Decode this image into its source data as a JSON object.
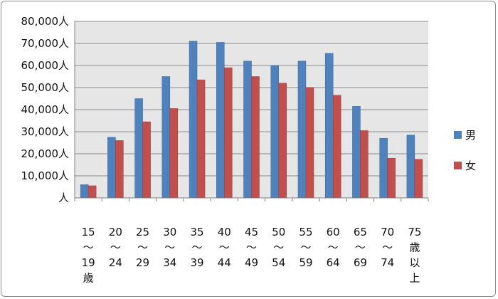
{
  "chart_data": {
    "type": "bar",
    "categories": [
      [
        "15",
        "～",
        "19",
        "歳"
      ],
      [
        "20",
        "～",
        "24"
      ],
      [
        "25",
        "～",
        "29"
      ],
      [
        "30",
        "～",
        "34"
      ],
      [
        "35",
        "～",
        "39"
      ],
      [
        "40",
        "～",
        "44"
      ],
      [
        "45",
        "～",
        "49"
      ],
      [
        "50",
        "～",
        "54"
      ],
      [
        "55",
        "～",
        "59"
      ],
      [
        "60",
        "～",
        "64"
      ],
      [
        "65",
        "～",
        "69"
      ],
      [
        "70",
        "～",
        "74"
      ],
      [
        "75",
        "歳",
        "以",
        "上"
      ]
    ],
    "series": [
      {
        "name": "男",
        "color": "#4f81bd",
        "values": [
          6000,
          27500,
          45000,
          55000,
          71000,
          70500,
          62000,
          60000,
          62000,
          65500,
          41500,
          27000,
          28500
        ]
      },
      {
        "name": "女",
        "color": "#c0504d",
        "values": [
          5500,
          26000,
          34500,
          40500,
          53500,
          59000,
          55000,
          52000,
          50000,
          46500,
          30500,
          18000,
          17500
        ]
      }
    ],
    "ylim": [
      0,
      80000
    ],
    "ytick_values": [
      0,
      10000,
      20000,
      30000,
      40000,
      50000,
      60000,
      70000,
      80000
    ],
    "ytick_labels": [
      "人",
      "10,000人",
      "20,000人",
      "30,000人",
      "40,000人",
      "50,000人",
      "60,000人",
      "70,000人",
      "80,000人"
    ],
    "grid": true,
    "legend_position": "right",
    "plot_background": "#e6e6e6"
  }
}
